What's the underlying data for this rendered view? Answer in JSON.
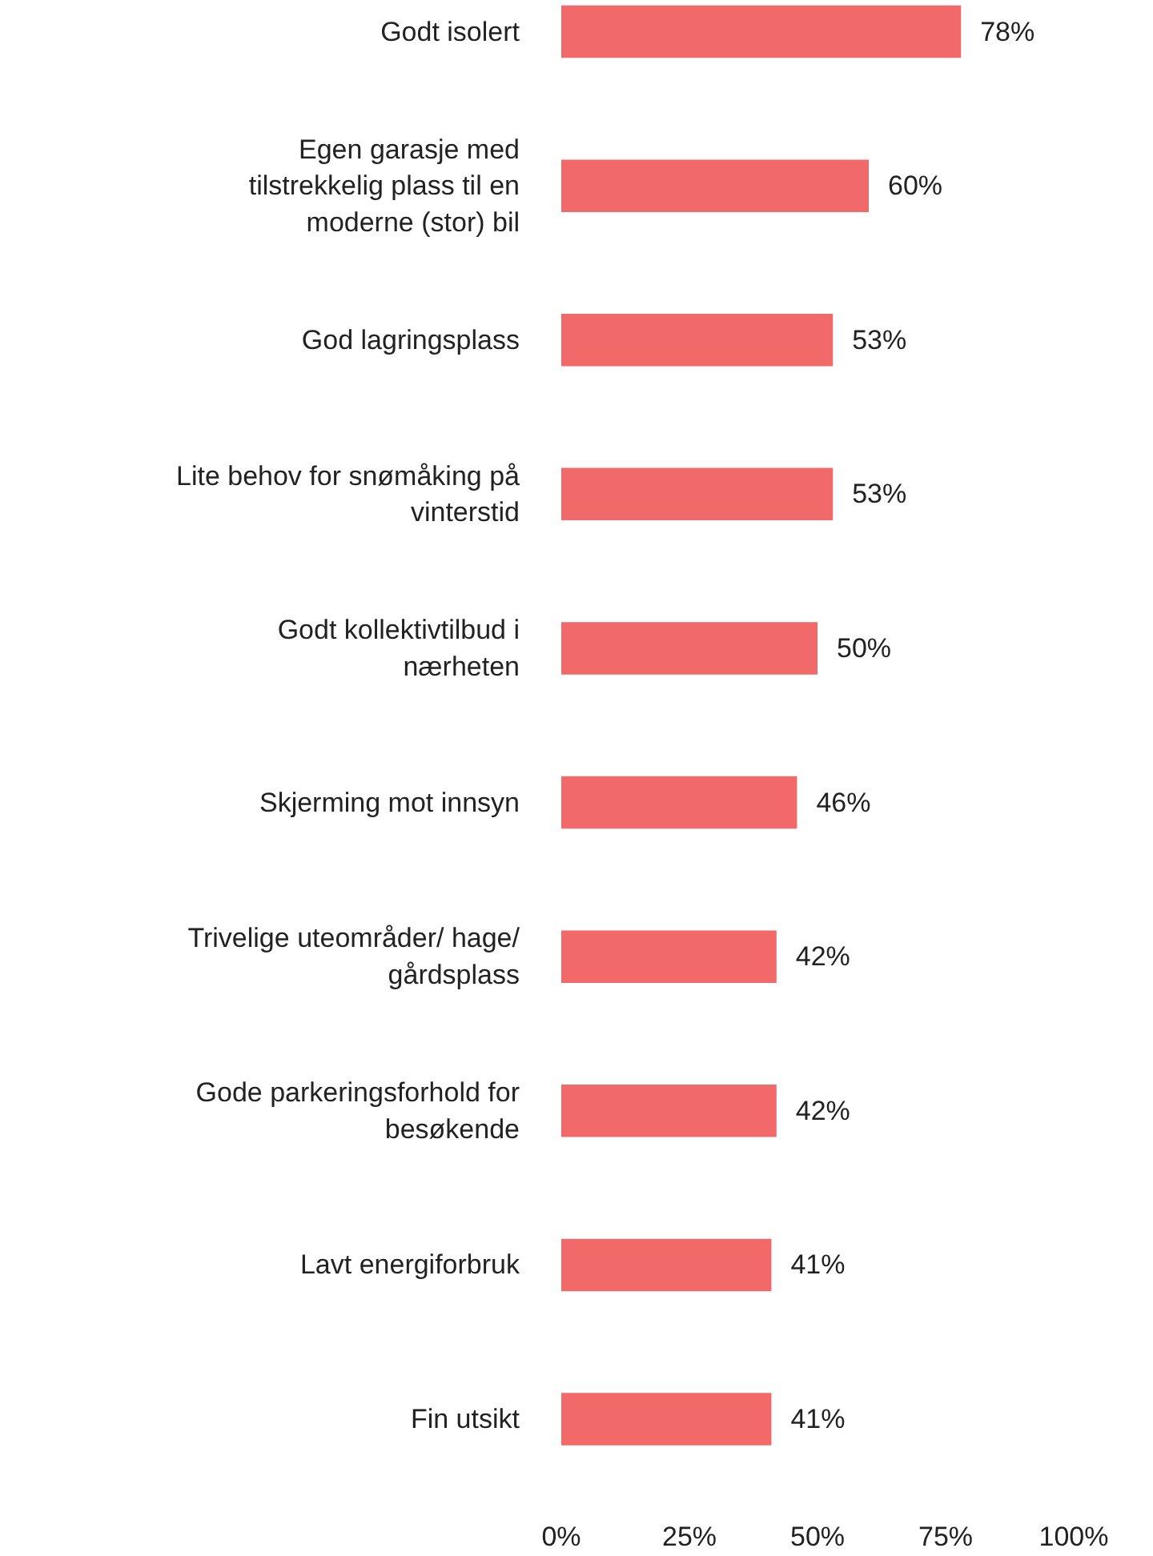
{
  "chart_data": {
    "type": "bar",
    "orientation": "horizontal",
    "categories": [
      "Godt isolert",
      "Egen garasje med tilstrekkelig plass til en moderne (stor) bil",
      "God lagringsplass",
      "Lite behov for snømåking på vinterstid",
      "Godt kollektivtilbud i nærheten",
      "Skjerming mot innsyn",
      "Trivelige uteområder/ hage/ gårdsplass",
      "Gode parkeringsforhold for besøkende",
      "Lavt energiforbruk",
      "Fin utsikt"
    ],
    "values": [
      78,
      60,
      53,
      53,
      50,
      46,
      42,
      42,
      41,
      41
    ],
    "value_labels": [
      "78%",
      "60%",
      "53%",
      "53%",
      "50%",
      "46%",
      "42%",
      "42%",
      "41%",
      "41%"
    ],
    "color": "#f26969",
    "xlim": [
      0,
      100
    ],
    "xticks": [
      {
        "value": 0,
        "label": "0%"
      },
      {
        "value": 25,
        "label": "25%"
      },
      {
        "value": 50,
        "label": "50%"
      },
      {
        "value": 75,
        "label": "75%"
      },
      {
        "value": 100,
        "label": "100%"
      }
    ],
    "grid": false
  }
}
